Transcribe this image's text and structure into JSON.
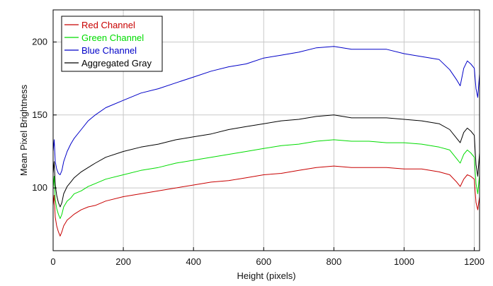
{
  "chart_data": {
    "type": "line",
    "title": "",
    "xlabel": "Height (pixels)",
    "ylabel": "Mean Pixel Brightness",
    "xlim": [
      0,
      1215
    ],
    "ylim": [
      57,
      222
    ],
    "xticks": [
      0,
      200,
      400,
      600,
      800,
      1000,
      1200
    ],
    "yticks": [
      100,
      150,
      200
    ],
    "grid": true,
    "legend_position": "top-left",
    "series": [
      {
        "name": "Red Channel",
        "color": "#c80000",
        "x": [
          0,
          3,
          6,
          10,
          15,
          20,
          25,
          30,
          40,
          50,
          60,
          80,
          100,
          120,
          150,
          200,
          250,
          300,
          350,
          400,
          450,
          500,
          550,
          600,
          650,
          700,
          750,
          800,
          850,
          900,
          950,
          1000,
          1050,
          1100,
          1130,
          1150,
          1160,
          1170,
          1180,
          1190,
          1200,
          1205,
          1210,
          1215
        ],
        "y": [
          88,
          95,
          80,
          74,
          70,
          67,
          70,
          74,
          78,
          80,
          82,
          85,
          87,
          88,
          91,
          94,
          96,
          98,
          100,
          102,
          104,
          105,
          107,
          109,
          110,
          112,
          114,
          115,
          114,
          114,
          114,
          113,
          113,
          111,
          109,
          104,
          101,
          106,
          109,
          108,
          106,
          90,
          85,
          94
        ]
      },
      {
        "name": "Green Channel",
        "color": "#00dc00",
        "x": [
          0,
          3,
          6,
          10,
          15,
          20,
          25,
          30,
          40,
          50,
          60,
          80,
          100,
          120,
          150,
          200,
          250,
          300,
          350,
          400,
          450,
          500,
          550,
          600,
          650,
          700,
          750,
          800,
          850,
          900,
          950,
          1000,
          1050,
          1100,
          1130,
          1150,
          1160,
          1170,
          1180,
          1190,
          1200,
          1205,
          1210,
          1215
        ],
        "y": [
          100,
          108,
          92,
          86,
          82,
          79,
          82,
          87,
          91,
          93,
          96,
          98,
          101,
          103,
          106,
          109,
          112,
          114,
          117,
          119,
          121,
          123,
          125,
          127,
          129,
          130,
          132,
          133,
          132,
          132,
          131,
          131,
          130,
          128,
          126,
          120,
          117,
          123,
          126,
          124,
          121,
          103,
          96,
          109
        ]
      },
      {
        "name": "Blue Channel",
        "color": "#0000c8",
        "x": [
          0,
          3,
          6,
          10,
          15,
          20,
          25,
          30,
          40,
          50,
          60,
          80,
          100,
          120,
          150,
          200,
          250,
          300,
          350,
          400,
          450,
          500,
          550,
          600,
          650,
          700,
          750,
          800,
          850,
          900,
          950,
          1000,
          1050,
          1100,
          1130,
          1150,
          1160,
          1170,
          1180,
          1190,
          1200,
          1205,
          1210,
          1215
        ],
        "y": [
          125,
          133,
          118,
          113,
          110,
          109,
          112,
          118,
          125,
          130,
          134,
          140,
          146,
          150,
          155,
          160,
          165,
          168,
          172,
          176,
          180,
          183,
          185,
          189,
          191,
          193,
          196,
          197,
          195,
          195,
          195,
          192,
          190,
          188,
          181,
          174,
          170,
          182,
          187,
          185,
          182,
          168,
          162,
          178
        ]
      },
      {
        "name": "Aggregated Gray",
        "color": "#000000",
        "x": [
          0,
          3,
          6,
          10,
          15,
          20,
          25,
          30,
          40,
          50,
          60,
          80,
          100,
          120,
          150,
          200,
          250,
          300,
          350,
          400,
          450,
          500,
          550,
          600,
          650,
          700,
          750,
          800,
          850,
          900,
          950,
          1000,
          1050,
          1100,
          1130,
          1150,
          1160,
          1170,
          1180,
          1190,
          1200,
          1205,
          1210,
          1215
        ],
        "y": [
          110,
          118,
          102,
          95,
          90,
          87,
          90,
          96,
          101,
          104,
          107,
          111,
          114,
          117,
          121,
          125,
          128,
          130,
          133,
          135,
          137,
          140,
          142,
          144,
          146,
          147,
          149,
          150,
          148,
          148,
          148,
          147,
          146,
          144,
          140,
          134,
          131,
          138,
          141,
          139,
          136,
          116,
          108,
          124
        ]
      }
    ]
  }
}
